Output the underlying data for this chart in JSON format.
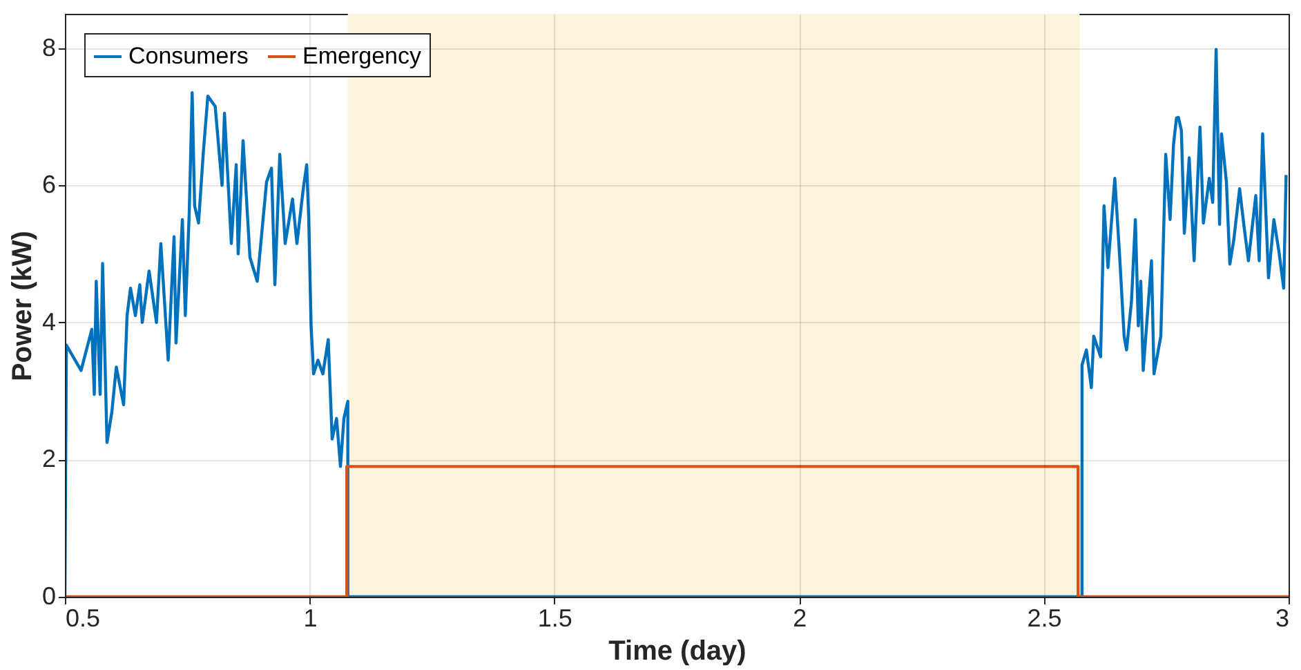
{
  "chart_data": {
    "type": "line",
    "xlabel": "Time (day)",
    "ylabel": "Power (kW)",
    "xlim": [
      0.5,
      3
    ],
    "xticks": [
      0.5,
      1,
      1.5,
      2,
      2.5,
      3
    ],
    "ylim": [
      0,
      8.5
    ],
    "yticks": [
      0,
      2,
      4,
      6,
      8
    ],
    "grid": true,
    "legend": "top left",
    "line_style": "solid",
    "marker": "none",
    "bands": [
      {
        "axis": "x",
        "from": 1.078,
        "to": 2.573,
        "color": "#fdf2dc"
      }
    ],
    "series": [
      {
        "name": "Consumers",
        "color": "#0072bd",
        "x": [
          0.5,
          0.503,
          0.533,
          0.555,
          0.56,
          0.564,
          0.572,
          0.577,
          0.586,
          0.596,
          0.605,
          0.62,
          0.627,
          0.634,
          0.644,
          0.653,
          0.658,
          0.672,
          0.687,
          0.696,
          0.711,
          0.723,
          0.727,
          0.74,
          0.746,
          0.754,
          0.76,
          0.765,
          0.773,
          0.783,
          0.792,
          0.807,
          0.821,
          0.826,
          0.84,
          0.85,
          0.854,
          0.864,
          0.878,
          0.893,
          0.912,
          0.922,
          0.929,
          0.939,
          0.95,
          0.965,
          0.974,
          0.987,
          0.994,
          0.998,
          1.003,
          1.008,
          1.017,
          1.027,
          1.038,
          1.046,
          1.055,
          1.063,
          1.07,
          1.078,
          1.078,
          2.578,
          2.578,
          2.587,
          2.597,
          2.602,
          2.616,
          2.623,
          2.631,
          2.645,
          2.655,
          2.664,
          2.669,
          2.679,
          2.687,
          2.693,
          2.698,
          2.703,
          2.72,
          2.725,
          2.739,
          2.749,
          2.758,
          2.765,
          2.771,
          2.775,
          2.781,
          2.787,
          2.797,
          2.807,
          2.819,
          2.826,
          2.838,
          2.845,
          2.852,
          2.859,
          2.863,
          2.873,
          2.88,
          2.888,
          2.9,
          2.909,
          2.918,
          2.933,
          2.94,
          2.947,
          2.959,
          2.97,
          2.98,
          2.99,
          2.995
        ],
        "values": [
          0,
          3.67,
          3.3,
          3.9,
          2.95,
          4.6,
          2.95,
          4.86,
          2.25,
          2.7,
          3.35,
          2.8,
          4.1,
          4.5,
          4.1,
          4.55,
          4.0,
          4.75,
          4.0,
          5.15,
          3.45,
          5.25,
          3.7,
          5.5,
          4.1,
          5.6,
          7.35,
          5.7,
          5.45,
          6.5,
          7.3,
          7.15,
          6.0,
          7.05,
          5.15,
          6.3,
          5.0,
          6.65,
          4.95,
          4.6,
          6.05,
          6.25,
          4.55,
          6.45,
          5.15,
          5.8,
          5.15,
          5.95,
          6.3,
          5.55,
          3.95,
          3.25,
          3.45,
          3.25,
          3.75,
          2.3,
          2.6,
          1.9,
          2.6,
          2.85,
          0,
          0,
          3.38,
          3.6,
          3.05,
          3.8,
          3.5,
          5.7,
          4.8,
          6.1,
          4.95,
          3.8,
          3.6,
          4.3,
          5.5,
          3.95,
          4.6,
          3.3,
          4.9,
          3.25,
          3.8,
          6.45,
          5.5,
          6.6,
          6.98,
          6.99,
          6.8,
          5.3,
          6.4,
          4.9,
          6.85,
          5.45,
          6.1,
          5.75,
          7.98,
          5.43,
          6.75,
          6.05,
          4.85,
          5.2,
          5.95,
          5.4,
          4.9,
          5.85,
          4.9,
          6.75,
          4.65,
          5.5,
          5.05,
          4.5,
          6.15
        ]
      },
      {
        "name": "Emergency",
        "color": "#d95319",
        "x": [
          0.5,
          1.076,
          1.076,
          2.57,
          2.57,
          3
        ],
        "values": [
          0,
          0,
          1.9,
          1.9,
          0,
          0
        ]
      }
    ]
  }
}
